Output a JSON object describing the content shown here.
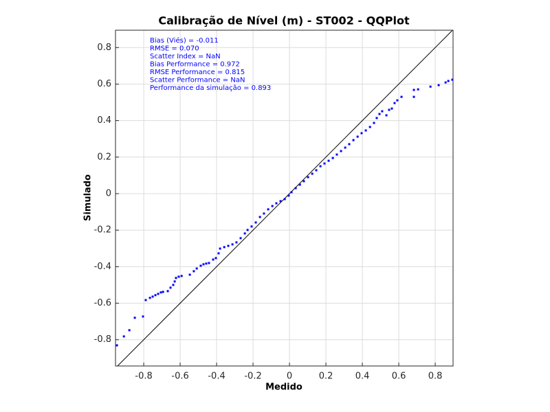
{
  "chart_data": {
    "type": "scatter",
    "title": "Calibração de Nível (m) - ST002 - QQPlot",
    "xlabel": "Medido",
    "ylabel": "Simulado",
    "annotations": [
      "Bias (Viés) = -0.011",
      "RMSE = 0.070",
      "Scatter Index = NaN",
      "Bias Performance = 0.972",
      "RMSE Performance = 0.815",
      "Scatter Performance = NaN",
      "Performance da simulação = 0.893"
    ],
    "color": "#0000ff",
    "grid": true,
    "xlim": [
      -0.955,
      0.898
    ],
    "ylim": [
      -0.944,
      0.895
    ],
    "xticks": [
      -0.8,
      -0.6,
      -0.4,
      -0.2,
      0,
      0.2,
      0.4,
      0.6,
      0.8
    ],
    "yticks": [
      -0.8,
      -0.6,
      -0.4,
      -0.2,
      0,
      0.2,
      0.4,
      0.6,
      0.8
    ],
    "x": [
      -0.947,
      -0.909,
      -0.879,
      -0.849,
      -0.804,
      -0.789,
      -0.766,
      -0.751,
      -0.736,
      -0.721,
      -0.706,
      -0.694,
      -0.668,
      -0.653,
      -0.638,
      -0.63,
      -0.623,
      -0.608,
      -0.592,
      -0.547,
      -0.525,
      -0.509,
      -0.487,
      -0.472,
      -0.457,
      -0.442,
      -0.419,
      -0.404,
      -0.389,
      -0.381,
      -0.358,
      -0.336,
      -0.313,
      -0.291,
      -0.268,
      -0.245,
      -0.23,
      -0.208,
      -0.185,
      -0.162,
      -0.14,
      -0.117,
      -0.094,
      -0.072,
      -0.049,
      -0.026,
      -0.004,
      0.011,
      0.034,
      0.057,
      0.079,
      0.102,
      0.125,
      0.147,
      0.17,
      0.192,
      0.215,
      0.238,
      0.26,
      0.283,
      0.306,
      0.328,
      0.351,
      0.374,
      0.396,
      0.419,
      0.442,
      0.464,
      0.479,
      0.494,
      0.509,
      0.532,
      0.547,
      0.562,
      0.577,
      0.592,
      0.615,
      0.683,
      0.683,
      0.706,
      0.774,
      0.819,
      0.857,
      0.872,
      0.894
    ],
    "values": [
      -0.831,
      -0.782,
      -0.748,
      -0.68,
      -0.673,
      -0.583,
      -0.571,
      -0.564,
      -0.556,
      -0.549,
      -0.541,
      -0.538,
      -0.534,
      -0.515,
      -0.5,
      -0.481,
      -0.462,
      -0.455,
      -0.451,
      -0.444,
      -0.425,
      -0.41,
      -0.395,
      -0.387,
      -0.383,
      -0.38,
      -0.361,
      -0.353,
      -0.327,
      -0.301,
      -0.293,
      -0.286,
      -0.278,
      -0.267,
      -0.244,
      -0.218,
      -0.199,
      -0.18,
      -0.158,
      -0.128,
      -0.109,
      -0.086,
      -0.068,
      -0.053,
      -0.041,
      -0.03,
      -0.011,
      0.008,
      0.03,
      0.049,
      0.068,
      0.09,
      0.109,
      0.128,
      0.15,
      0.165,
      0.18,
      0.195,
      0.214,
      0.233,
      0.252,
      0.271,
      0.293,
      0.312,
      0.331,
      0.346,
      0.365,
      0.387,
      0.414,
      0.436,
      0.451,
      0.429,
      0.459,
      0.466,
      0.496,
      0.511,
      0.53,
      0.53,
      0.568,
      0.571,
      0.586,
      0.594,
      0.609,
      0.617,
      0.624
    ]
  }
}
